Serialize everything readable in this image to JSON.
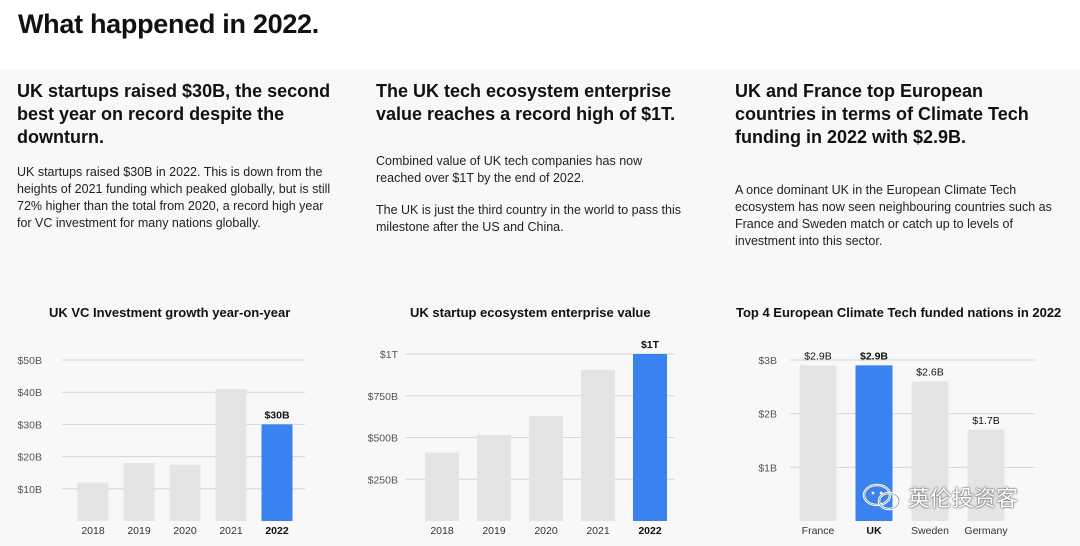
{
  "page": {
    "title": "What happened in 2022."
  },
  "columns": [
    {
      "heading": "UK startups raised $30B, the second best year on record despite the downturn.",
      "paragraphs": [
        "UK startups raised $30B in 2022. This is down from the heights of 2021 funding which peaked globally, but is still 72% higher than the total from 2020, a record high year for VC investment for many nations globally."
      ]
    },
    {
      "heading": "The UK tech ecosystem enterprise value reaches a record high of $1T.",
      "paragraphs": [
        "Combined value of UK tech companies has now reached over $1T by the end of 2022.",
        "The UK is just the third country in the world to pass this milestone after the US and China."
      ]
    },
    {
      "heading": "UK and France top European countries in terms of Climate Tech funding in 2022 with $2.9B.",
      "paragraphs": [
        "A once dominant UK in the European Climate Tech ecosystem has now seen neighbouring countries such as France and Sweden match or catch up to levels of investment into this sector."
      ]
    }
  ],
  "colors": {
    "highlight": "#3a82f0",
    "bar": "#e4e4e4",
    "grid": "#d6d6d6",
    "axis_text": "#555555"
  },
  "chart_data": [
    {
      "type": "bar",
      "title": "UK VC Investment growth year-on-year",
      "categories": [
        "2018",
        "2019",
        "2020",
        "2021",
        "2022"
      ],
      "values": [
        12,
        18,
        17.5,
        41,
        30
      ],
      "y_ticks": [
        10,
        20,
        30,
        40,
        50
      ],
      "y_tick_labels": [
        "$10B",
        "$20B",
        "$30B",
        "$40B",
        "$50B"
      ],
      "ylim": [
        0,
        50
      ],
      "highlight_index": 4,
      "data_labels": [
        "",
        "",
        "",
        "",
        "$30B"
      ],
      "grid": true
    },
    {
      "type": "bar",
      "title": "UK startup ecosystem enterprise value",
      "categories": [
        "2018",
        "2019",
        "2020",
        "2021",
        "2022"
      ],
      "values": [
        410,
        515,
        630,
        905,
        1000
      ],
      "y_ticks": [
        250,
        500,
        750,
        1000
      ],
      "y_tick_labels": [
        "$250B",
        "$500B",
        "$750B",
        "$1T"
      ],
      "ylim": [
        0,
        1000
      ],
      "highlight_index": 4,
      "data_labels": [
        "",
        "",
        "",
        "",
        "$1T"
      ],
      "grid": true
    },
    {
      "type": "bar",
      "title": "Top 4 European Climate Tech funded nations in 2022",
      "categories": [
        "France",
        "UK",
        "Sweden",
        "Germany"
      ],
      "values": [
        2.9,
        2.9,
        2.6,
        1.7
      ],
      "y_ticks": [
        1,
        2,
        3
      ],
      "y_tick_labels": [
        "$1B",
        "$2B",
        "$3B"
      ],
      "ylim": [
        0,
        3
      ],
      "highlight_index": 1,
      "data_labels": [
        "$2.9B",
        "$2.9B",
        "$2.6B",
        "$1.7B"
      ],
      "grid": true
    }
  ],
  "watermark": {
    "text": "英伦投资客",
    "icon": "wechat-logo-icon"
  }
}
